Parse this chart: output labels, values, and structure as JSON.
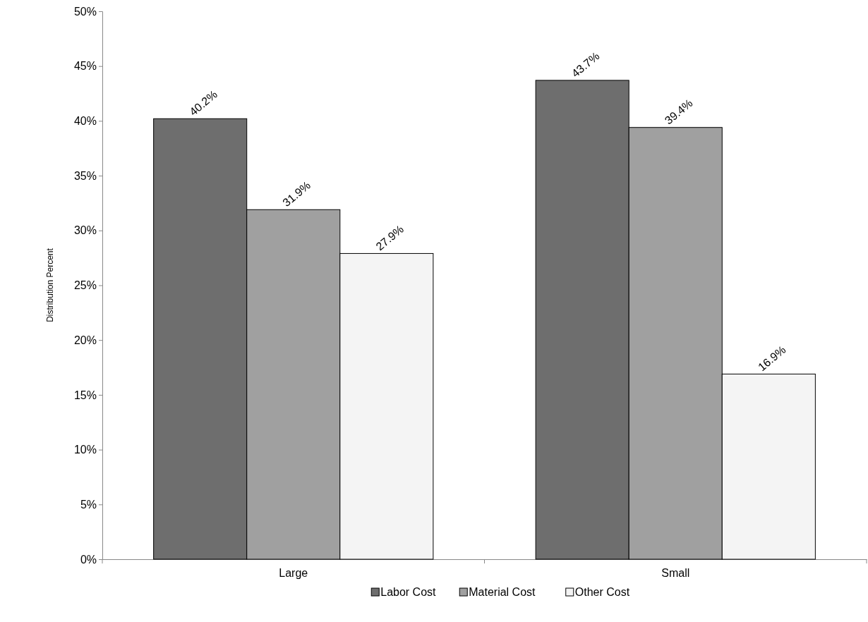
{
  "chart_data": {
    "type": "bar",
    "ylabel": "Distribution Percent",
    "categories": [
      "Large",
      "Small"
    ],
    "series": [
      {
        "name": "Labor Cost",
        "color": "#6e6e6e",
        "values": [
          40.2,
          43.7
        ]
      },
      {
        "name": "Material Cost",
        "color": "#a0a0a0",
        "values": [
          31.9,
          39.4
        ]
      },
      {
        "name": "Other Cost",
        "color": "#f4f4f4",
        "values": [
          27.9,
          16.9
        ]
      }
    ],
    "ylim": [
      0,
      50
    ],
    "yticks": [
      {
        "value": 0,
        "label": "0%"
      },
      {
        "value": 5,
        "label": "5%"
      },
      {
        "value": 10,
        "label": "10%"
      },
      {
        "value": 15,
        "label": "15%"
      },
      {
        "value": 20,
        "label": "20%"
      },
      {
        "value": 25,
        "label": "25%"
      },
      {
        "value": 30,
        "label": "30%"
      },
      {
        "value": 35,
        "label": "35%"
      },
      {
        "value": 40,
        "label": "40%"
      },
      {
        "value": 45,
        "label": "45%"
      },
      {
        "value": 50,
        "label": "50%"
      }
    ],
    "value_labels": [
      [
        "40.2%",
        "43.7%"
      ],
      [
        "31.9%",
        "39.4%"
      ],
      [
        "27.9%",
        "16.9%"
      ]
    ],
    "grid": false,
    "legend": "bottom"
  }
}
